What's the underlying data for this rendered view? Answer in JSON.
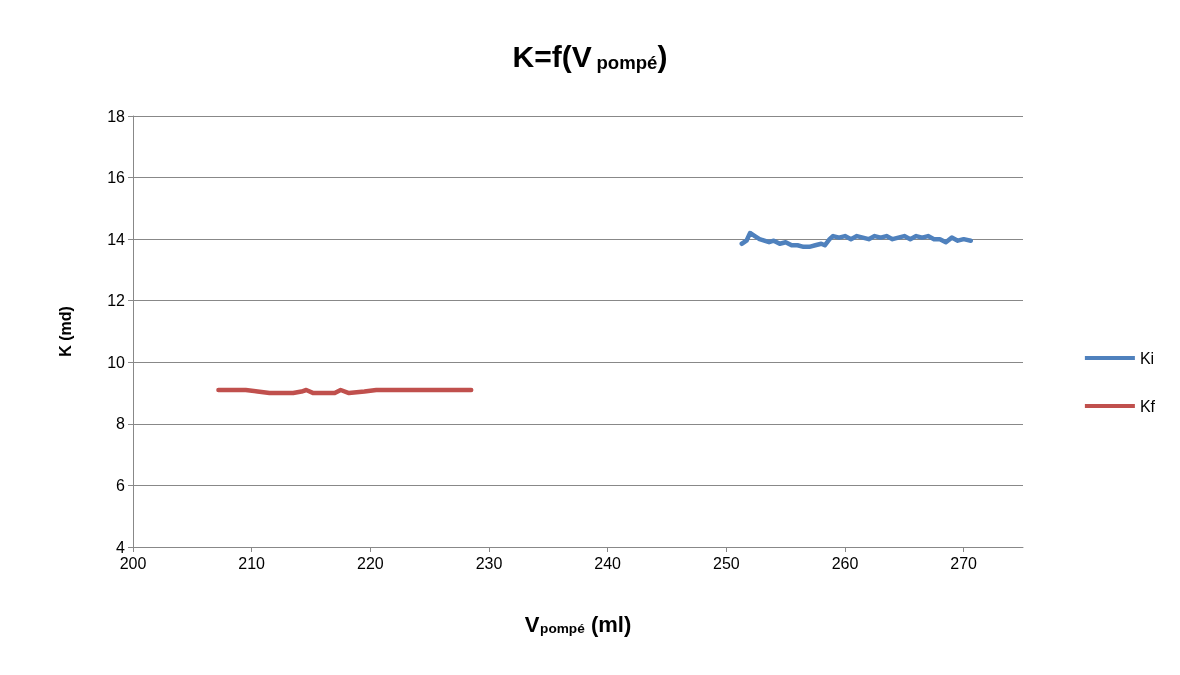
{
  "chart_data": {
    "type": "line",
    "title": "K=f(V$_{pompé}$)",
    "xlabel": "V$_{pompé}$ (ml)",
    "ylabel": "K (md)",
    "xlim": [
      200,
      275
    ],
    "xticks": [
      200,
      210,
      220,
      230,
      240,
      250,
      260,
      270
    ],
    "ylim": [
      4,
      18
    ],
    "yticks": [
      4,
      6,
      8,
      10,
      12,
      14,
      16,
      18
    ],
    "grid": "y",
    "legend": "right",
    "marker": "none",
    "line_style": "solid",
    "series": [
      {
        "name": "Ki",
        "color": "#4f81bd",
        "x": [
          251.3,
          251.7,
          252.0,
          252.4,
          252.8,
          253.2,
          253.6,
          254.0,
          254.5,
          255.0,
          255.5,
          256.0,
          256.5,
          257.0,
          257.5,
          258.0,
          258.3,
          258.7,
          259.0,
          259.5,
          260.0,
          260.5,
          261.0,
          261.5,
          262.0,
          262.5,
          263.0,
          263.5,
          264.0,
          264.5,
          265.0,
          265.5,
          266.0,
          266.5,
          267.0,
          267.5,
          268.0,
          268.5,
          269.0,
          269.5,
          270.0,
          270.6
        ],
        "values": [
          13.85,
          13.95,
          14.2,
          14.1,
          14.0,
          13.95,
          13.9,
          13.95,
          13.85,
          13.9,
          13.8,
          13.8,
          13.75,
          13.75,
          13.8,
          13.85,
          13.8,
          14.0,
          14.1,
          14.05,
          14.1,
          14.0,
          14.1,
          14.05,
          14.0,
          14.1,
          14.05,
          14.1,
          14.0,
          14.05,
          14.1,
          14.0,
          14.1,
          14.05,
          14.1,
          14.0,
          14.0,
          13.9,
          14.05,
          13.95,
          14.0,
          13.95
        ]
      },
      {
        "name": "Kf",
        "color": "#c0504d",
        "x": [
          207.2,
          209.5,
          210.5,
          211.5,
          213.5,
          214.2,
          214.6,
          215.2,
          217.0,
          217.5,
          218.2,
          219.5,
          220.5,
          228.5
        ],
        "values": [
          9.1,
          9.1,
          9.05,
          9.0,
          9.0,
          9.05,
          9.1,
          9.0,
          9.0,
          9.1,
          9.0,
          9.05,
          9.1,
          9.1
        ]
      }
    ]
  }
}
